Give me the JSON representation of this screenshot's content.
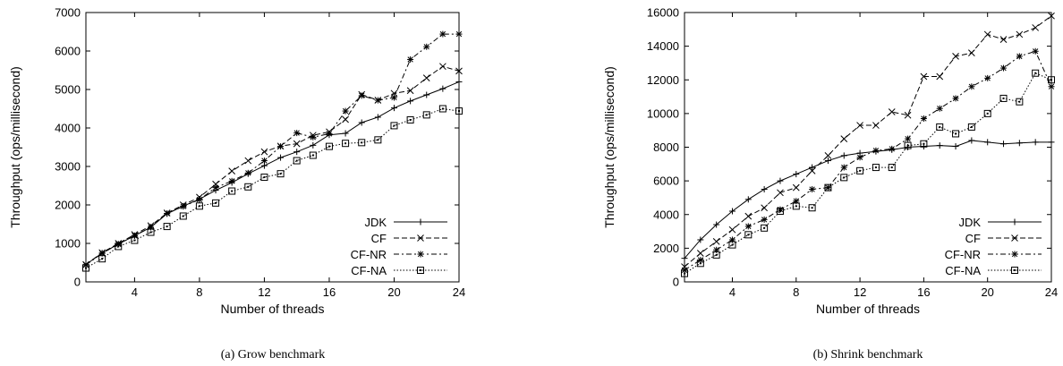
{
  "chart_data": [
    {
      "type": "line",
      "caption": "(a)  Grow benchmark",
      "xlabel": "Number of threads",
      "ylabel": "Throughput (ops/millisecond)",
      "xlim": [
        1,
        24
      ],
      "ylim": [
        0,
        7000
      ],
      "xticks": [
        4,
        8,
        12,
        16,
        20,
        24
      ],
      "yticks": [
        0,
        1000,
        2000,
        3000,
        4000,
        5000,
        6000,
        7000
      ],
      "legend_position": "bottom-right",
      "x": [
        1,
        2,
        3,
        4,
        5,
        6,
        7,
        8,
        9,
        10,
        11,
        12,
        13,
        14,
        15,
        16,
        17,
        18,
        19,
        20,
        21,
        22,
        23,
        24
      ],
      "series": [
        {
          "name": "JDK",
          "marker": "plus",
          "dash": "solid",
          "values": [
            450,
            750,
            980,
            1200,
            1420,
            1770,
            1970,
            2150,
            2380,
            2580,
            2810,
            3020,
            3230,
            3380,
            3550,
            3820,
            3860,
            4140,
            4280,
            4520,
            4700,
            4860,
            5020,
            5200
          ]
        },
        {
          "name": "CF",
          "marker": "cross",
          "dash": "dashed",
          "values": [
            450,
            760,
            1000,
            1230,
            1460,
            1790,
            2000,
            2200,
            2540,
            2880,
            3150,
            3380,
            3530,
            3590,
            3810,
            3900,
            4220,
            4870,
            4720,
            4900,
            4970,
            5300,
            5600,
            5480
          ]
        },
        {
          "name": "CF-NR",
          "marker": "star",
          "dash": "dashdot",
          "values": [
            440,
            740,
            980,
            1200,
            1420,
            1780,
            1960,
            2140,
            2450,
            2620,
            2830,
            3150,
            3520,
            3870,
            3760,
            3850,
            4440,
            4840,
            4720,
            4790,
            5780,
            6110,
            6440,
            6440
          ]
        },
        {
          "name": "CF-NA",
          "marker": "square",
          "dash": "dotted",
          "values": [
            360,
            600,
            920,
            1080,
            1290,
            1440,
            1710,
            1970,
            2050,
            2360,
            2470,
            2720,
            2810,
            3150,
            3290,
            3520,
            3600,
            3620,
            3690,
            4060,
            4210,
            4340,
            4500,
            4440
          ]
        }
      ]
    },
    {
      "type": "line",
      "caption": "(b)  Shrink benchmark",
      "xlabel": "Number of threads",
      "ylabel": "Throughput (ops/millisecond)",
      "xlim": [
        1,
        24
      ],
      "ylim": [
        0,
        16000
      ],
      "xticks": [
        4,
        8,
        12,
        16,
        20,
        24
      ],
      "yticks": [
        0,
        2000,
        4000,
        6000,
        8000,
        10000,
        12000,
        14000,
        16000
      ],
      "legend_position": "bottom-right",
      "x": [
        1,
        2,
        3,
        4,
        5,
        6,
        7,
        8,
        9,
        10,
        11,
        12,
        13,
        14,
        15,
        16,
        17,
        18,
        19,
        20,
        21,
        22,
        23,
        24
      ],
      "series": [
        {
          "name": "JDK",
          "marker": "plus",
          "dash": "solid",
          "values": [
            1400,
            2500,
            3400,
            4200,
            4900,
            5500,
            6000,
            6400,
            6800,
            7200,
            7500,
            7650,
            7750,
            7850,
            8000,
            8050,
            8100,
            8050,
            8400,
            8300,
            8200,
            8250,
            8300,
            8300
          ]
        },
        {
          "name": "CF",
          "marker": "cross",
          "dash": "dashed",
          "values": [
            900,
            1700,
            2400,
            3100,
            3900,
            4400,
            5300,
            5600,
            6600,
            7500,
            8500,
            9300,
            9300,
            10100,
            9900,
            12200,
            12200,
            13400,
            13600,
            14700,
            14400,
            14700,
            15100,
            15800
          ]
        },
        {
          "name": "CF-NR",
          "marker": "star",
          "dash": "dashdot",
          "values": [
            700,
            1300,
            1900,
            2500,
            3300,
            3700,
            4300,
            4800,
            5500,
            5600,
            6800,
            7400,
            7800,
            7900,
            8500,
            9700,
            10300,
            10900,
            11600,
            12100,
            12700,
            13400,
            13700,
            11600
          ]
        },
        {
          "name": "CF-NA",
          "marker": "square",
          "dash": "dotted",
          "values": [
            500,
            1100,
            1600,
            2200,
            2800,
            3200,
            4200,
            4500,
            4400,
            5600,
            6200,
            6600,
            6800,
            6800,
            8100,
            8200,
            9200,
            8800,
            9200,
            10000,
            10900,
            10700,
            12400,
            12000
          ]
        }
      ]
    }
  ]
}
